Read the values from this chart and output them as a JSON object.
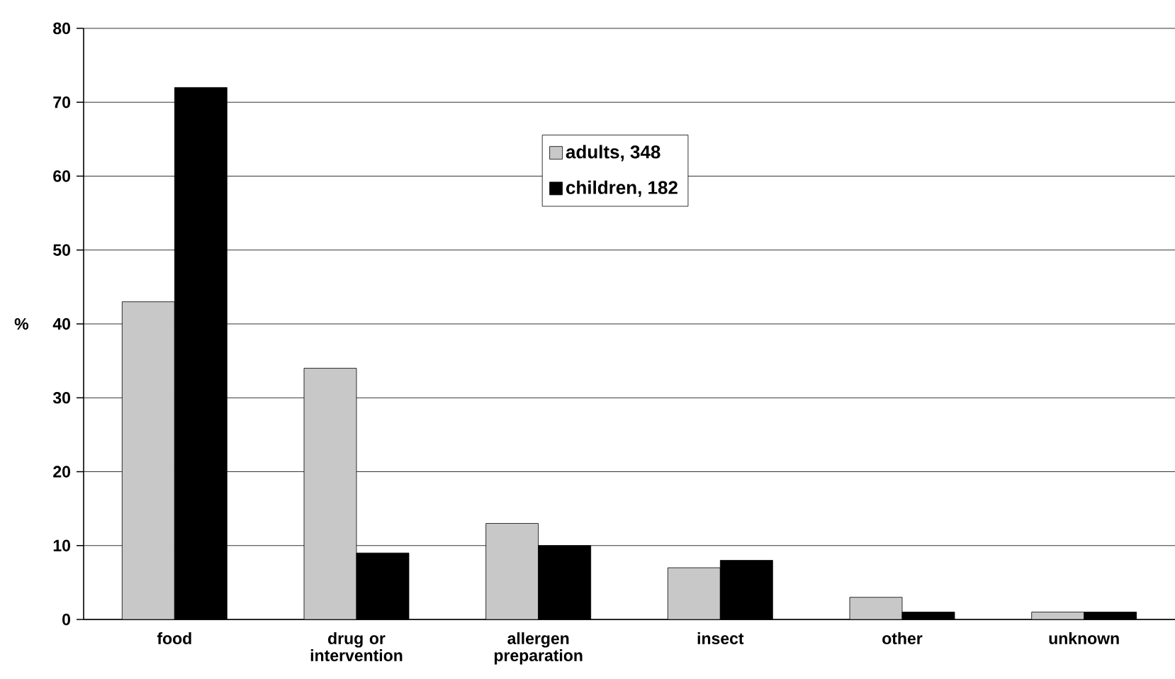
{
  "chart_data": {
    "type": "bar",
    "ylabel": "%",
    "categories": [
      "food",
      "drug or intervention",
      "allergen preparation",
      "insect",
      "other",
      "unknown"
    ],
    "series": [
      {
        "name": "adults, 348",
        "color": "#c8c8c8",
        "values": [
          43,
          34,
          13,
          7,
          3,
          1
        ]
      },
      {
        "name": "children, 182",
        "color": "#000000",
        "values": [
          72,
          9,
          10,
          8,
          1,
          1
        ]
      }
    ],
    "ylim": [
      0,
      80
    ],
    "yticks": [
      0,
      10,
      20,
      30,
      40,
      50,
      60,
      70,
      80
    ],
    "grid": "y",
    "legend": "top"
  }
}
